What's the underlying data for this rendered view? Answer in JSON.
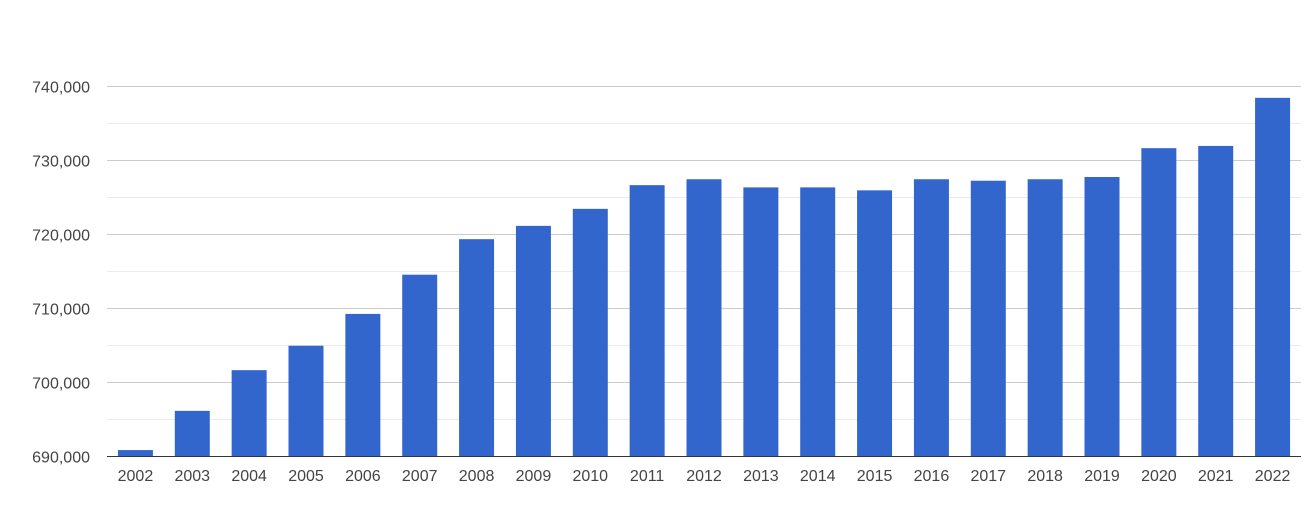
{
  "chart_data": {
    "type": "bar",
    "title": "",
    "xlabel": "",
    "ylabel": "",
    "categories": [
      "2002",
      "2003",
      "2004",
      "2005",
      "2006",
      "2007",
      "2008",
      "2009",
      "2010",
      "2011",
      "2012",
      "2013",
      "2014",
      "2015",
      "2016",
      "2017",
      "2018",
      "2019",
      "2020",
      "2021",
      "2022"
    ],
    "values": [
      690800,
      696100,
      701600,
      704900,
      709200,
      714500,
      719300,
      721100,
      723400,
      726600,
      727400,
      726300,
      726300,
      725900,
      727400,
      727200,
      727400,
      727700,
      731600,
      731900,
      738400
    ],
    "ylim": [
      690000,
      740000
    ],
    "yticks": [
      690000,
      700000,
      710000,
      720000,
      730000,
      740000
    ],
    "ytick_labels": [
      "690,000",
      "700,000",
      "710,000",
      "720,000",
      "730,000",
      "740,000"
    ],
    "grid": true,
    "legend": "none",
    "bar_color": "#3366cc"
  }
}
